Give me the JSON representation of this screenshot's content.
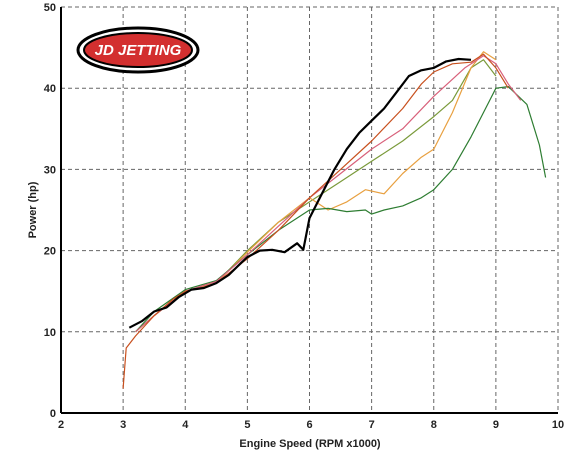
{
  "chart_data": {
    "type": "line",
    "xlabel": "Engine Speed (RPM x1000)",
    "ylabel": "Power (hp)",
    "xlim": [
      2,
      10
    ],
    "ylim": [
      0,
      50
    ],
    "x_ticks": [
      2,
      3,
      4,
      5,
      6,
      7,
      8,
      9,
      10
    ],
    "y_ticks": [
      0,
      10,
      20,
      30,
      40,
      50
    ],
    "grid": true,
    "logo": "JD JETTING",
    "series": [
      {
        "color": "#000000",
        "x": [
          3.1,
          3.3,
          3.5,
          3.7,
          3.9,
          4.1,
          4.3,
          4.5,
          4.7,
          4.9,
          5.0,
          5.2,
          5.4,
          5.6,
          5.8,
          5.9,
          6.0,
          6.2,
          6.4,
          6.6,
          6.8,
          7.0,
          7.2,
          7.4,
          7.6,
          7.8,
          8.0,
          8.2,
          8.4,
          8.6
        ],
        "y": [
          10.5,
          11.3,
          12.5,
          13.0,
          14.3,
          15.2,
          15.4,
          16.0,
          17.0,
          18.5,
          19.2,
          20.0,
          20.1,
          19.8,
          20.9,
          20.1,
          24.0,
          27.0,
          30.0,
          32.5,
          34.5,
          36.0,
          37.5,
          39.5,
          41.5,
          42.2,
          42.5,
          43.3,
          43.6,
          43.5
        ]
      },
      {
        "color": "#c8501e",
        "x": [
          3.0,
          3.05,
          3.2,
          3.5,
          3.8,
          4.0,
          4.3,
          4.5,
          4.8,
          5.0,
          5.5,
          6.0,
          6.5,
          7.0,
          7.5,
          7.8,
          8.0,
          8.3,
          8.6,
          8.8,
          9.0,
          9.2
        ],
        "y": [
          3.0,
          8.0,
          9.5,
          12.0,
          14.0,
          15.0,
          15.5,
          16.0,
          17.8,
          19.0,
          22.5,
          26.5,
          30.0,
          33.5,
          37.5,
          40.5,
          42.0,
          43.0,
          43.2,
          44.2,
          42.5,
          40.0
        ]
      },
      {
        "color": "#d8607a",
        "x": [
          3.2,
          3.5,
          4.0,
          4.5,
          5.0,
          5.5,
          6.0,
          6.5,
          7.0,
          7.5,
          8.0,
          8.5,
          8.8,
          9.0,
          9.2,
          9.4
        ],
        "y": [
          10.0,
          12.0,
          15.0,
          16.2,
          19.5,
          23.0,
          26.5,
          29.5,
          32.5,
          35.0,
          39.0,
          42.5,
          44.0,
          43.0,
          40.5,
          38.5
        ]
      },
      {
        "color": "#2e7d32",
        "x": [
          3.2,
          3.5,
          4.0,
          4.5,
          5.0,
          5.5,
          6.0,
          6.3,
          6.6,
          6.9,
          7.0,
          7.2,
          7.5,
          7.8,
          8.0,
          8.3,
          8.6,
          8.9,
          9.0,
          9.2,
          9.5,
          9.7,
          9.8
        ],
        "y": [
          10.0,
          12.5,
          15.2,
          16.3,
          19.5,
          22.5,
          25.0,
          25.2,
          24.8,
          25.0,
          24.5,
          25.0,
          25.5,
          26.5,
          27.5,
          30.0,
          34.0,
          38.5,
          40.0,
          40.2,
          38.0,
          33.0,
          29.0
        ]
      },
      {
        "color": "#e8a040",
        "x": [
          3.2,
          3.5,
          4.0,
          4.5,
          5.0,
          5.5,
          6.0,
          6.3,
          6.6,
          6.9,
          7.2,
          7.5,
          7.8,
          8.0,
          8.3,
          8.6,
          8.8,
          9.0
        ],
        "y": [
          10.0,
          12.0,
          15.0,
          16.0,
          19.8,
          23.5,
          26.5,
          25.0,
          26.0,
          27.5,
          27.0,
          29.5,
          31.5,
          32.5,
          37.0,
          42.5,
          44.5,
          43.5
        ]
      },
      {
        "color": "#7a9a3a",
        "x": [
          3.2,
          3.5,
          4.0,
          4.5,
          5.0,
          5.5,
          6.0,
          6.5,
          7.0,
          7.5,
          8.0,
          8.3,
          8.6,
          8.8,
          9.0
        ],
        "y": [
          10.0,
          12.0,
          15.0,
          16.0,
          20.0,
          23.5,
          26.0,
          28.5,
          31.0,
          33.5,
          36.5,
          38.5,
          42.5,
          43.5,
          41.5
        ]
      }
    ]
  }
}
